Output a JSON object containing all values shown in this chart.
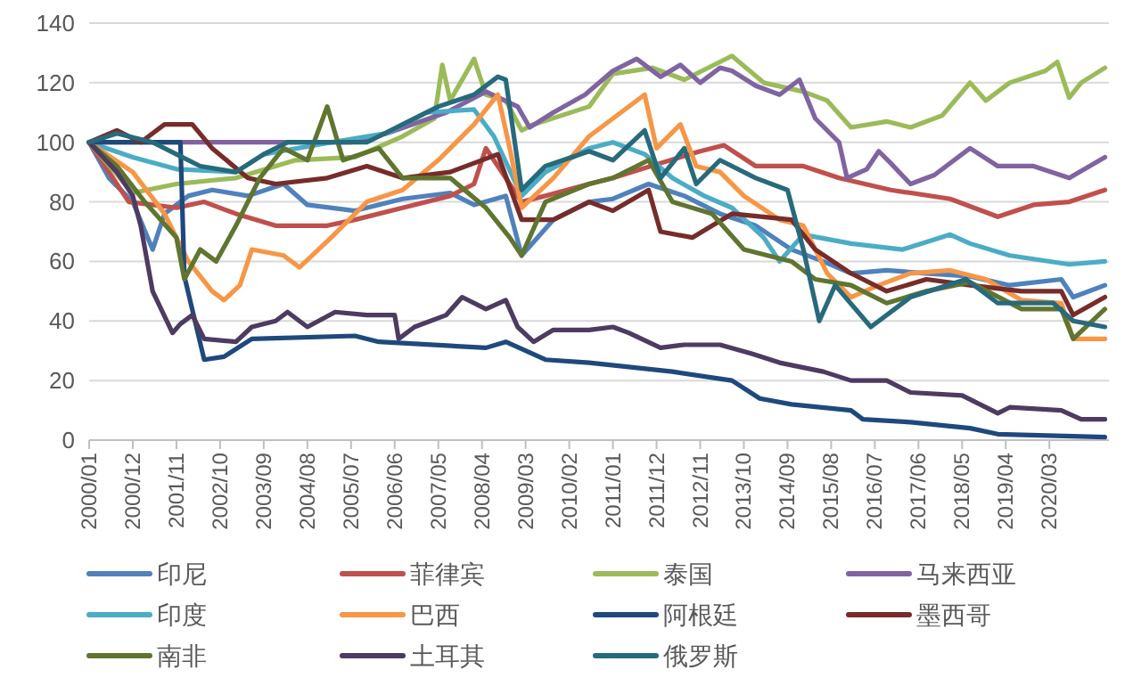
{
  "chart_data": {
    "type": "line",
    "ylim": [
      0,
      140
    ],
    "yticks": [
      0,
      20,
      40,
      60,
      80,
      100,
      120,
      140
    ],
    "xlim": [
      "2000-01",
      "2021-06"
    ],
    "xticks": [
      {
        "value": "2000-01",
        "label": "2000/01"
      },
      {
        "value": "2000-12",
        "label": "2000/12"
      },
      {
        "value": "2001-11",
        "label": "2001/11"
      },
      {
        "value": "2002-10",
        "label": "2002/10"
      },
      {
        "value": "2003-09",
        "label": "2003/09"
      },
      {
        "value": "2004-08",
        "label": "2004/08"
      },
      {
        "value": "2005-07",
        "label": "2005/07"
      },
      {
        "value": "2006-06",
        "label": "2006/06"
      },
      {
        "value": "2007-05",
        "label": "2007/05"
      },
      {
        "value": "2008-04",
        "label": "2008/04"
      },
      {
        "value": "2009-03",
        "label": "2009/03"
      },
      {
        "value": "2010-02",
        "label": "2010/02"
      },
      {
        "value": "2011-01",
        "label": "2011/01"
      },
      {
        "value": "2011-12",
        "label": "2011/12"
      },
      {
        "value": "2012-11",
        "label": "2012/11"
      },
      {
        "value": "2013-10",
        "label": "2013/10"
      },
      {
        "value": "2014-09",
        "label": "2014/09"
      },
      {
        "value": "2015-08",
        "label": "2015/08"
      },
      {
        "value": "2016-07",
        "label": "2016/07"
      },
      {
        "value": "2017-06",
        "label": "2017/06"
      },
      {
        "value": "2018-05",
        "label": "2018/05"
      },
      {
        "value": "2019-04",
        "label": "2019/04"
      },
      {
        "value": "2020-03",
        "label": "2020/03"
      }
    ],
    "grid": "y",
    "legend": "bottom",
    "line_style": "solid",
    "series": [
      {
        "name": "印尼",
        "color": "#4f81bd",
        "x": [
          "2000-01",
          "2000-06",
          "2000-12",
          "2001-05",
          "2001-08",
          "2002-02",
          "2002-08",
          "2003-05",
          "2004-02",
          "2004-08",
          "2005-08",
          "2006-08",
          "2007-08",
          "2008-02",
          "2008-10",
          "2009-02",
          "2009-10",
          "2010-07",
          "2011-01",
          "2011-10",
          "2012-07",
          "2013-04",
          "2014-01",
          "2014-10",
          "2015-06",
          "2016-01",
          "2016-10",
          "2017-08",
          "2018-07",
          "2019-05",
          "2020-06",
          "2020-09",
          "2021-05"
        ],
        "values": [
          100,
          88,
          80,
          64,
          76,
          82,
          84,
          82,
          86,
          79,
          77,
          81,
          83,
          79,
          82,
          62,
          74,
          80,
          81,
          86,
          82,
          76,
          72,
          64,
          60,
          56,
          57,
          56,
          55,
          52,
          54,
          48,
          52
        ]
      },
      {
        "name": "菲律宾",
        "color": "#c0504d",
        "x": [
          "2000-01",
          "2000-11",
          "2001-11",
          "2002-06",
          "2003-02",
          "2003-12",
          "2005-01",
          "2005-08",
          "2006-08",
          "2007-08",
          "2008-02",
          "2008-05",
          "2008-11",
          "2009-02",
          "2009-08",
          "2010-07",
          "2011-01",
          "2012-01",
          "2012-11",
          "2013-05",
          "2014-01",
          "2015-01",
          "2015-10",
          "2016-11",
          "2018-02",
          "2019-02",
          "2019-11",
          "2020-08",
          "2021-05"
        ],
        "values": [
          100,
          80,
          78,
          80,
          76,
          72,
          72,
          74,
          78,
          82,
          86,
          98,
          86,
          80,
          82,
          86,
          88,
          93,
          97,
          99,
          92,
          92,
          88,
          84,
          81,
          75,
          79,
          80,
          84
        ]
      },
      {
        "name": "泰国",
        "color": "#9bbb59",
        "x": [
          "2000-01",
          "2000-12",
          "2001-11",
          "2003-02",
          "2004-05",
          "2005-08",
          "2006-08",
          "2007-04",
          "2007-06",
          "2007-08",
          "2008-02",
          "2008-05",
          "2008-10",
          "2009-02",
          "2009-05",
          "2010-07",
          "2011-01",
          "2011-11",
          "2012-07",
          "2013-07",
          "2014-03",
          "2015-01",
          "2015-07",
          "2016-01",
          "2016-10",
          "2017-04",
          "2017-12",
          "2018-07",
          "2018-11",
          "2019-05",
          "2020-02",
          "2020-05",
          "2020-08",
          "2020-11",
          "2021-05"
        ],
        "values": [
          100,
          83,
          86,
          88,
          94,
          95,
          102,
          108,
          126,
          114,
          128,
          116,
          114,
          104,
          106,
          112,
          123,
          125,
          121,
          129,
          120,
          117,
          114,
          105,
          107,
          105,
          109,
          120,
          114,
          120,
          124,
          127,
          115,
          120,
          125
        ]
      },
      {
        "name": "马来西亚",
        "color": "#8064a2",
        "x": [
          "2000-01",
          "2005-07",
          "2006-04",
          "2007-07",
          "2008-05",
          "2009-01",
          "2009-04",
          "2009-10",
          "2010-06",
          "2011-01",
          "2011-07",
          "2012-01",
          "2012-06",
          "2012-11",
          "2013-04",
          "2013-07",
          "2014-01",
          "2014-07",
          "2014-12",
          "2015-04",
          "2015-10",
          "2015-12",
          "2016-05",
          "2016-08",
          "2016-11",
          "2017-04",
          "2017-10",
          "2018-07",
          "2019-02",
          "2019-11",
          "2020-08",
          "2021-05"
        ],
        "values": [
          100,
          100,
          103,
          110,
          117,
          112,
          105,
          110,
          116,
          124,
          128,
          122,
          126,
          120,
          125,
          124,
          119,
          116,
          121,
          108,
          100,
          88,
          91,
          97,
          93,
          86,
          89,
          98,
          92,
          92,
          88,
          95
        ]
      },
      {
        "name": "印度",
        "color": "#4bacc6",
        "x": [
          "2000-01",
          "2000-12",
          "2001-11",
          "2003-02",
          "2003-09",
          "2005-02",
          "2006-04",
          "2007-02",
          "2008-02",
          "2008-07",
          "2009-02",
          "2009-08",
          "2010-07",
          "2011-01",
          "2011-09",
          "2012-04",
          "2012-12",
          "2013-07",
          "2014-03",
          "2014-07",
          "2015-01",
          "2016-01",
          "2017-02",
          "2018-02",
          "2018-07",
          "2019-05",
          "2020-08",
          "2021-05"
        ],
        "values": [
          100,
          95,
          91,
          90,
          96,
          100,
          103,
          110,
          111,
          102,
          82,
          90,
          98,
          100,
          96,
          88,
          82,
          78,
          68,
          60,
          69,
          66,
          64,
          69,
          66,
          62,
          59,
          60
        ]
      },
      {
        "name": "巴西",
        "color": "#f79646",
        "x": [
          "2000-01",
          "2000-12",
          "2001-08",
          "2002-02",
          "2002-08",
          "2002-11",
          "2003-03",
          "2003-06",
          "2004-02",
          "2004-06",
          "2005-02",
          "2005-11",
          "2006-08",
          "2007-05",
          "2008-02",
          "2008-08",
          "2008-11",
          "2009-02",
          "2009-10",
          "2010-07",
          "2011-01",
          "2011-09",
          "2011-12",
          "2012-06",
          "2012-10",
          "2013-04",
          "2013-10",
          "2014-07",
          "2015-01",
          "2015-07",
          "2016-01",
          "2016-08",
          "2017-04",
          "2018-02",
          "2018-11",
          "2019-08",
          "2020-06",
          "2020-09",
          "2021-05"
        ],
        "values": [
          100,
          90,
          76,
          60,
          50,
          47,
          52,
          64,
          62,
          58,
          68,
          80,
          84,
          94,
          106,
          116,
          98,
          78,
          88,
          102,
          108,
          116,
          98,
          106,
          92,
          90,
          82,
          74,
          72,
          56,
          48,
          52,
          56,
          57,
          54,
          47,
          46,
          34,
          34
        ]
      },
      {
        "name": "阿根廷",
        "color": "#1f497d",
        "x": [
          "2000-01",
          "2001-12",
          "2002-01",
          "2002-06",
          "2002-11",
          "2003-06",
          "2005-08",
          "2006-02",
          "2008-05",
          "2008-10",
          "2009-08",
          "2010-07",
          "2012-04",
          "2013-07",
          "2014-02",
          "2014-10",
          "2016-01",
          "2016-04",
          "2017-04",
          "2018-07",
          "2019-02",
          "2021-05"
        ],
        "values": [
          100,
          100,
          55,
          27,
          28,
          34,
          35,
          33,
          31,
          33,
          27,
          26,
          23,
          20,
          14,
          12,
          10,
          7,
          6,
          4,
          2,
          1
        ]
      },
      {
        "name": "墨西哥",
        "color": "#772c2a",
        "x": [
          "2000-01",
          "2000-08",
          "2001-02",
          "2001-08",
          "2002-03",
          "2002-08",
          "2003-05",
          "2003-12",
          "2005-01",
          "2005-11",
          "2006-08",
          "2007-08",
          "2008-08",
          "2009-02",
          "2009-10",
          "2010-07",
          "2011-01",
          "2011-10",
          "2012-01",
          "2012-09",
          "2013-07",
          "2014-10",
          "2015-04",
          "2016-01",
          "2016-10",
          "2017-08",
          "2018-07",
          "2019-08",
          "2020-06",
          "2020-09",
          "2021-05"
        ],
        "values": [
          100,
          104,
          100,
          106,
          106,
          98,
          88,
          86,
          88,
          92,
          88,
          90,
          96,
          74,
          74,
          80,
          77,
          84,
          70,
          68,
          76,
          74,
          64,
          56,
          50,
          54,
          52,
          50,
          50,
          42,
          48
        ]
      },
      {
        "name": "南非",
        "color": "#5f7530",
        "x": [
          "2000-01",
          "2000-08",
          "2001-03",
          "2001-11",
          "2002-01",
          "2002-05",
          "2002-09",
          "2003-02",
          "2003-08",
          "2004-02",
          "2004-08",
          "2005-01",
          "2005-05",
          "2006-02",
          "2006-08",
          "2007-08",
          "2008-05",
          "2008-11",
          "2009-02",
          "2009-08",
          "2010-07",
          "2011-01",
          "2011-10",
          "2012-04",
          "2013-02",
          "2013-10",
          "2014-10",
          "2015-04",
          "2016-01",
          "2016-10",
          "2017-08",
          "2018-07",
          "2019-08",
          "2020-06",
          "2020-09",
          "2021-05"
        ],
        "values": [
          100,
          92,
          80,
          68,
          54,
          64,
          60,
          72,
          88,
          98,
          94,
          112,
          94,
          98,
          88,
          88,
          78,
          68,
          62,
          80,
          86,
          88,
          94,
          80,
          76,
          64,
          60,
          54,
          52,
          46,
          50,
          53,
          44,
          44,
          34,
          44
        ]
      },
      {
        "name": "土耳其",
        "color": "#4d3b62",
        "x": [
          "2000-01",
          "2000-08",
          "2000-12",
          "2001-02",
          "2001-05",
          "2001-10",
          "2001-12",
          "2002-03",
          "2002-06",
          "2003-02",
          "2003-06",
          "2003-12",
          "2004-03",
          "2004-08",
          "2005-03",
          "2005-11",
          "2006-06",
          "2006-07",
          "2006-11",
          "2007-07",
          "2007-11",
          "2008-05",
          "2008-10",
          "2009-01",
          "2009-05",
          "2009-10",
          "2010-07",
          "2011-01",
          "2011-05",
          "2012-01",
          "2012-07",
          "2013-04",
          "2013-12",
          "2014-07",
          "2015-06",
          "2016-01",
          "2016-10",
          "2017-04",
          "2018-05",
          "2019-02",
          "2019-05",
          "2020-06",
          "2020-11",
          "2021-05"
        ],
        "values": [
          100,
          90,
          82,
          72,
          50,
          36,
          39,
          42,
          34,
          33,
          38,
          40,
          43,
          38,
          43,
          42,
          42,
          34,
          38,
          42,
          48,
          44,
          47,
          38,
          33,
          37,
          37,
          38,
          36,
          31,
          32,
          32,
          29,
          26,
          23,
          20,
          20,
          16,
          15,
          9,
          11,
          10,
          7,
          7
        ]
      },
      {
        "name": "俄罗斯",
        "color": "#276a7c",
        "x": [
          "2000-01",
          "2000-08",
          "2001-05",
          "2001-11",
          "2002-05",
          "2003-02",
          "2003-09",
          "2004-03",
          "2005-02",
          "2005-11",
          "2006-08",
          "2007-05",
          "2008-02",
          "2008-08",
          "2008-10",
          "2009-02",
          "2009-08",
          "2010-07",
          "2011-01",
          "2011-09",
          "2012-01",
          "2012-07",
          "2012-10",
          "2013-04",
          "2014-01",
          "2014-09",
          "2015-01",
          "2015-05",
          "2015-09",
          "2016-06",
          "2017-04",
          "2018-06",
          "2019-02",
          "2020-04",
          "2020-09",
          "2021-05"
        ],
        "values": [
          100,
          103,
          100,
          96,
          92,
          90,
          96,
          100,
          100,
          100,
          106,
          112,
          116,
          122,
          121,
          84,
          92,
          97,
          94,
          104,
          88,
          98,
          86,
          94,
          88,
          84,
          64,
          40,
          52,
          38,
          48,
          54,
          46,
          46,
          40,
          38
        ]
      }
    ]
  }
}
